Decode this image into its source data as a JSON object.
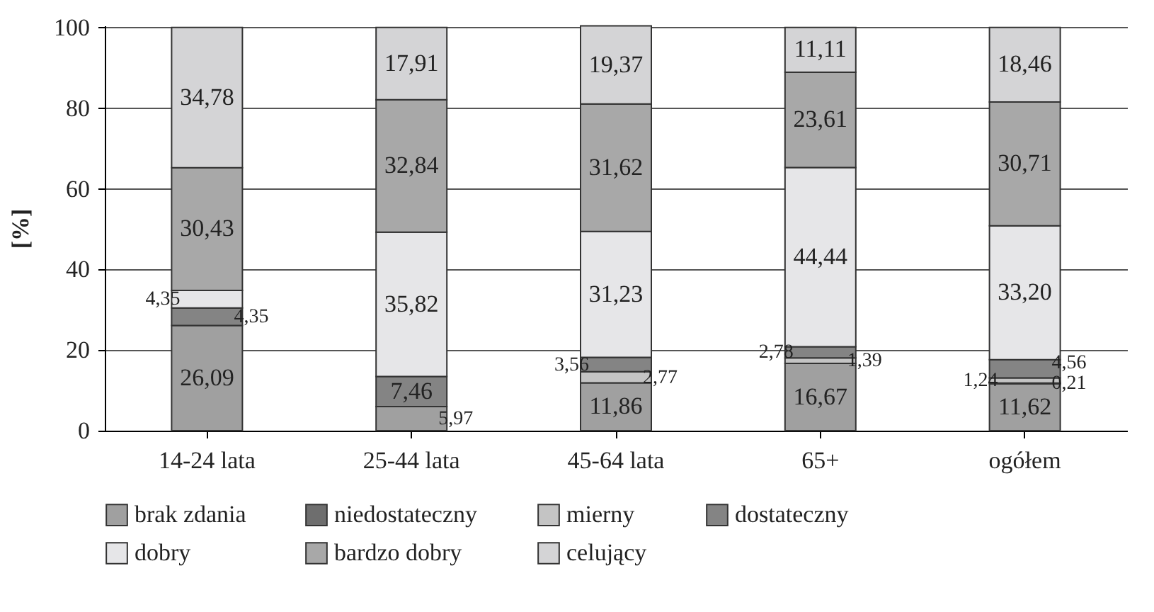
{
  "chart_data": {
    "type": "bar",
    "stacked": true,
    "ylabel": "[%]",
    "categories": [
      "14-24 lata",
      "25-44 lata",
      "45-64 lata",
      "65+",
      "ogółem"
    ],
    "series": [
      {
        "name": "brak zdania",
        "color": "#a0a0a0",
        "values": [
          26.09,
          5.97,
          11.86,
          16.67,
          11.62
        ],
        "value_labels": [
          "26,09",
          "5,97",
          "11,86",
          "16,67",
          "11,62"
        ]
      },
      {
        "name": "niedostateczny",
        "color": "#6e6e6e",
        "values": [
          null,
          null,
          null,
          null,
          0.21
        ],
        "value_labels": [
          null,
          null,
          null,
          null,
          "0,21"
        ]
      },
      {
        "name": "mierny",
        "color": "#c4c4c4",
        "values": [
          null,
          null,
          2.77,
          1.39,
          1.24
        ],
        "value_labels": [
          null,
          null,
          "2,77",
          "1,39",
          "1,24"
        ]
      },
      {
        "name": "dostateczny",
        "color": "#848484",
        "values": [
          4.35,
          7.46,
          3.56,
          2.78,
          4.56
        ],
        "value_labels": [
          "4,35",
          "7,46",
          "3,56",
          "2,78",
          "4,56"
        ]
      },
      {
        "name": "dobry",
        "color": "#e6e6e8",
        "values": [
          4.35,
          35.82,
          31.23,
          44.44,
          33.2
        ],
        "value_labels": [
          "4,35",
          "35,82",
          "31,23",
          "44,44",
          "33,20"
        ]
      },
      {
        "name": "bardzo dobry",
        "color": "#a8a8a8",
        "values": [
          30.43,
          32.84,
          31.62,
          23.61,
          30.71
        ],
        "value_labels": [
          "30,43",
          "32,84",
          "31,62",
          "23,61",
          "30,71"
        ]
      },
      {
        "name": "celujący",
        "color": "#d4d4d6",
        "values": [
          34.78,
          17.91,
          19.37,
          11.11,
          18.46
        ],
        "value_labels": [
          "34,78",
          "17,91",
          "19,37",
          "11,11",
          "18,46"
        ]
      }
    ],
    "ylim": [
      0,
      100.5
    ],
    "yticks": [
      0,
      20,
      40,
      60,
      80,
      100
    ],
    "grid": "y",
    "legend": "bottom"
  }
}
